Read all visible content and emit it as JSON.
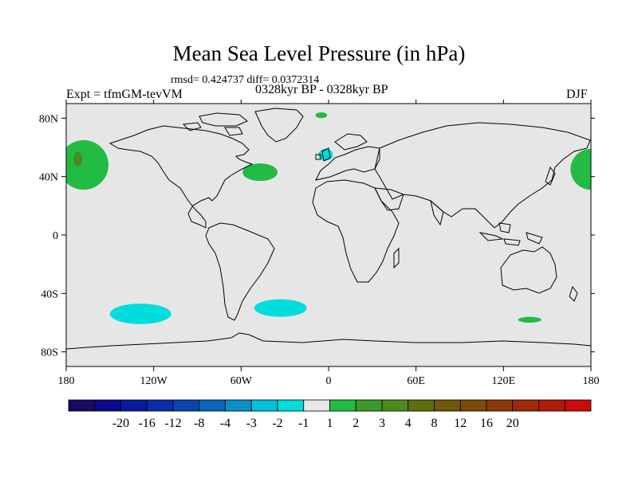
{
  "title": "Mean Sea Level Pressure (in hPa)",
  "stats": "rmsd= 0.424737 diff= 0.0372314",
  "experiment": "Expt = tfmGM-tevVM",
  "period": "0328kyr BP - 0328kyr BP",
  "season": "DJF",
  "map": {
    "lon_range": [
      -180,
      180
    ],
    "lat_range": [
      -90,
      90
    ],
    "x_ticks": [
      {
        "lon": -180,
        "label": "180"
      },
      {
        "lon": -120,
        "label": "120W"
      },
      {
        "lon": -60,
        "label": "60W"
      },
      {
        "lon": 0,
        "label": "0"
      },
      {
        "lon": 60,
        "label": "60E"
      },
      {
        "lon": 120,
        "label": "120E"
      },
      {
        "lon": 180,
        "label": "180"
      }
    ],
    "y_ticks": [
      {
        "lat": 80,
        "label": "80N"
      },
      {
        "lat": 40,
        "label": "40N"
      },
      {
        "lat": 0,
        "label": "0"
      },
      {
        "lat": -40,
        "label": "40S"
      },
      {
        "lat": -80,
        "label": "80S"
      }
    ],
    "background_color": "#e6e6e6",
    "anomaly_regions": [
      {
        "id": "north-pacific-west-positive",
        "color": "#22bb44",
        "lon": -168,
        "lat": 48,
        "rlon": 17,
        "rlat": 17
      },
      {
        "id": "north-pacific-core-positive",
        "color": "#4a8a1e",
        "lon": -172,
        "lat": 52,
        "rlon": 3,
        "rlat": 5
      },
      {
        "id": "north-pacific-east-positive",
        "color": "#22bb44",
        "lon": 180,
        "lat": 45,
        "rlon": 14,
        "rlat": 14
      },
      {
        "id": "north-atlantic-positive",
        "color": "#22bb44",
        "lon": -47,
        "lat": 43,
        "rlon": 12,
        "rlat": 6
      },
      {
        "id": "arctic-positive",
        "color": "#22bb44",
        "lon": -5,
        "lat": 82,
        "rlon": 4,
        "rlat": 2
      },
      {
        "id": "europe-negative",
        "color": "#00dddd",
        "lon": -2,
        "lat": 55,
        "rlon": 5,
        "rlat": 4
      },
      {
        "id": "south-pacific-negative",
        "color": "#00dddd",
        "lon": -129,
        "lat": -54,
        "rlon": 21,
        "rlat": 7
      },
      {
        "id": "south-atlantic-negative",
        "color": "#00dddd",
        "lon": -33,
        "lat": -50,
        "rlon": 18,
        "rlat": 6
      },
      {
        "id": "southern-ocean-positive",
        "color": "#22bb44",
        "lon": 138,
        "lat": -58,
        "rlon": 8,
        "rlat": 2
      }
    ]
  },
  "colorbar": {
    "colors": [
      "#160a63",
      "#0a0a8c",
      "#0a1a9e",
      "#0a2da8",
      "#0a44b0",
      "#0a66bb",
      "#0a8fc8",
      "#00c0dd",
      "#00dddd",
      "#e6e6e6",
      "#22bb44",
      "#3d9a2a",
      "#4d8a1e",
      "#5e6e10",
      "#6e5a08",
      "#7e4a08",
      "#8e3a08",
      "#9e2a08",
      "#b01a08",
      "#cc0a0a"
    ],
    "labels": [
      "-20",
      "-16",
      "-12",
      "-8",
      "-4",
      "-3",
      "-2",
      "-1",
      "1",
      "2",
      "3",
      "4",
      "8",
      "12",
      "16",
      "20"
    ]
  }
}
